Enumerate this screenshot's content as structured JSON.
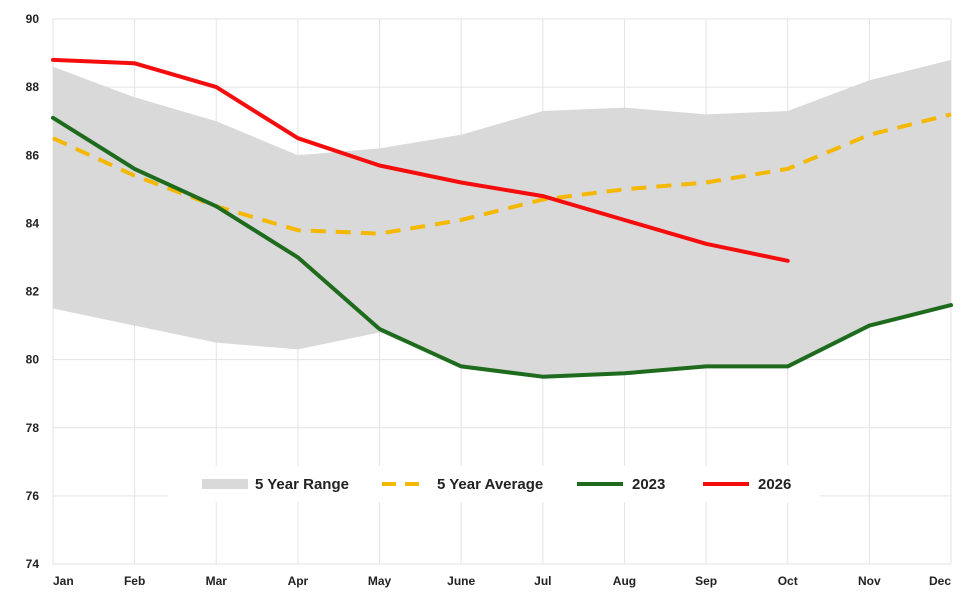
{
  "chart_data": {
    "type": "line",
    "categories": [
      "Jan",
      "Feb",
      "Mar",
      "Apr",
      "May",
      "June",
      "Jul",
      "Aug",
      "Sep",
      "Oct",
      "Nov",
      "Dec"
    ],
    "ylim": [
      74,
      90
    ],
    "yticks": [
      74,
      76,
      78,
      80,
      82,
      84,
      86,
      88,
      90
    ],
    "grid": true,
    "legend_position": "bottom-center",
    "range": {
      "name": "5 Year Range",
      "color": "#d9d9d9",
      "upper": [
        88.6,
        87.7,
        87.0,
        86.0,
        86.2,
        86.6,
        87.3,
        87.4,
        87.2,
        87.3,
        88.2,
        88.8
      ],
      "lower": [
        81.5,
        81.0,
        80.5,
        80.3,
        80.8,
        79.8,
        79.5,
        79.6,
        79.8,
        79.8,
        81.0,
        81.6
      ]
    },
    "series": [
      {
        "name": "5 Year Average",
        "color": "#f5b800",
        "style": "dashed",
        "values": [
          86.5,
          85.4,
          84.5,
          83.8,
          83.7,
          84.1,
          84.7,
          85.0,
          85.2,
          85.6,
          86.6,
          87.2
        ]
      },
      {
        "name": "2023",
        "color": "#1e6b1e",
        "style": "solid",
        "values": [
          87.1,
          85.6,
          84.5,
          83.0,
          80.9,
          79.8,
          79.5,
          79.6,
          79.8,
          79.8,
          81.0,
          81.6
        ]
      },
      {
        "name": "2026",
        "color": "#f50d0d",
        "style": "solid",
        "values": [
          88.8,
          88.7,
          88.0,
          86.5,
          85.7,
          85.2,
          84.8,
          84.1,
          83.4,
          82.9,
          null,
          null
        ]
      }
    ]
  }
}
